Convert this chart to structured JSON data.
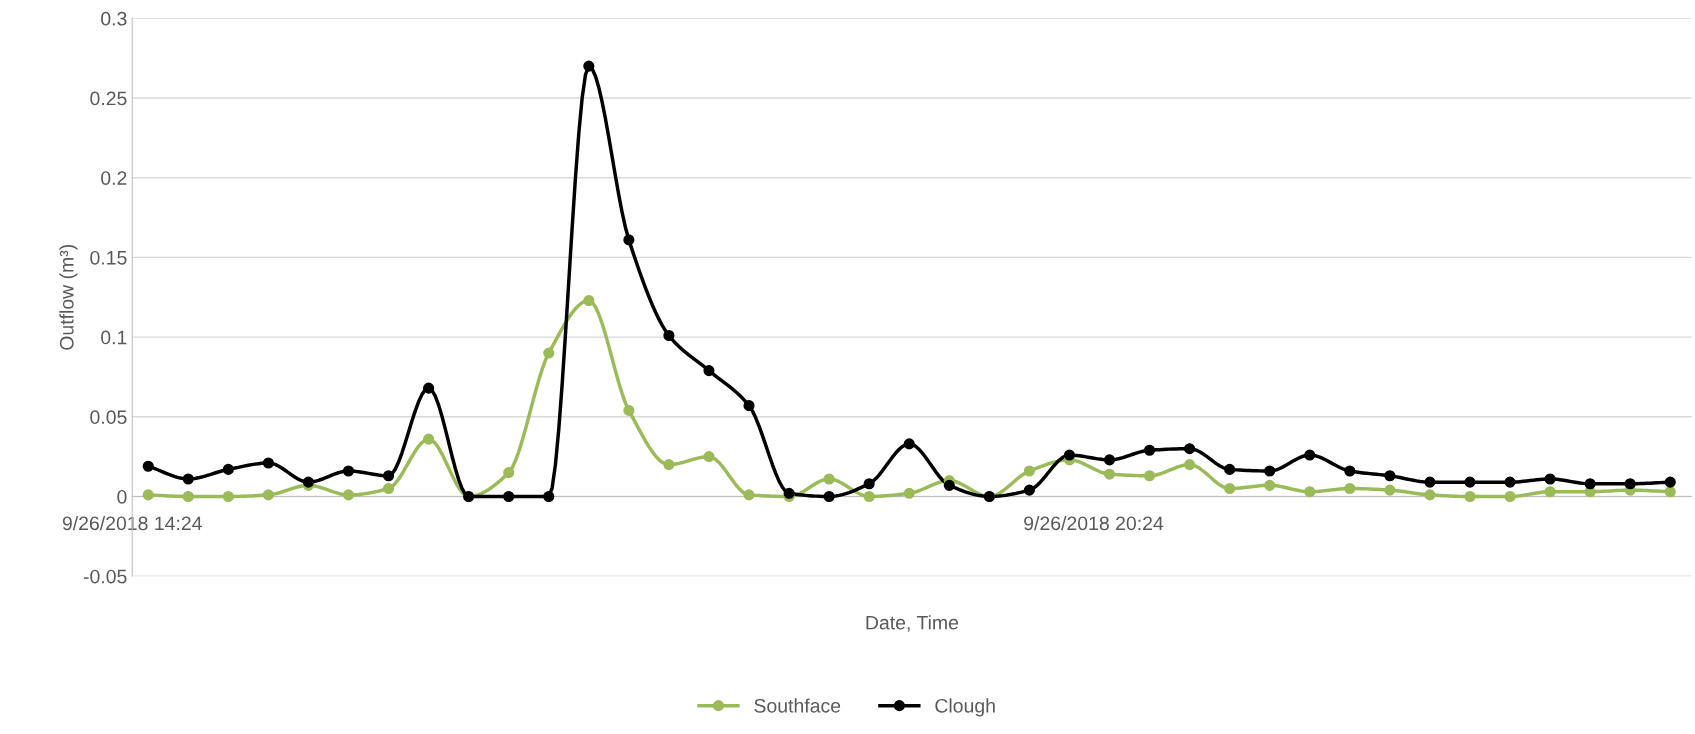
{
  "chart_data": {
    "type": "line",
    "xlabel": "Date, Time",
    "ylabel": "Outflow (m³)",
    "x": [
      "2018-09-26T14:30",
      "2018-09-26T14:45",
      "2018-09-26T15:00",
      "2018-09-26T15:15",
      "2018-09-26T15:30",
      "2018-09-26T15:45",
      "2018-09-26T16:00",
      "2018-09-26T16:15",
      "2018-09-26T16:30",
      "2018-09-26T16:45",
      "2018-09-26T17:00",
      "2018-09-26T17:15",
      "2018-09-26T17:30",
      "2018-09-26T17:45",
      "2018-09-26T18:00",
      "2018-09-26T18:15",
      "2018-09-26T18:30",
      "2018-09-26T18:45",
      "2018-09-26T19:00",
      "2018-09-26T19:15",
      "2018-09-26T19:30",
      "2018-09-26T19:45",
      "2018-09-26T20:00",
      "2018-09-26T20:15",
      "2018-09-26T20:30",
      "2018-09-26T20:45",
      "2018-09-26T21:00",
      "2018-09-26T21:15",
      "2018-09-26T21:30",
      "2018-09-26T21:45",
      "2018-09-26T22:00",
      "2018-09-26T22:15",
      "2018-09-26T22:30",
      "2018-09-26T22:45",
      "2018-09-26T23:00",
      "2018-09-26T23:15",
      "2018-09-26T23:30",
      "2018-09-26T23:45",
      "2018-09-27T00:00"
    ],
    "series": [
      {
        "name": "Southface",
        "color": "#9bbb59",
        "values": [
          0.001,
          0,
          0,
          0.001,
          0.007,
          0.001,
          0.005,
          0.036,
          0,
          0.015,
          0.09,
          0.123,
          0.054,
          0.02,
          0.025,
          0.001,
          0,
          0.011,
          0,
          0.002,
          0.01,
          0,
          0.016,
          0.023,
          0.014,
          0.013,
          0.02,
          0.005,
          0.007,
          0.003,
          0.005,
          0.004,
          0.001,
          0,
          0,
          0.003,
          0.003,
          0.004,
          0.003
        ]
      },
      {
        "name": "Clough",
        "color": "#000000",
        "values": [
          0.019,
          0.011,
          0.017,
          0.021,
          0.009,
          0.016,
          0.013,
          0.068,
          0,
          0,
          0,
          0.27,
          0.161,
          0.101,
          0.079,
          0.057,
          0.002,
          0,
          0.008,
          0.033,
          0.007,
          0,
          0.004,
          0.026,
          0.023,
          0.029,
          0.03,
          0.017,
          0.016,
          0.026,
          0.016,
          0.013,
          0.009,
          0.009,
          0.009,
          0.011,
          0.008,
          0.008,
          0.009
        ]
      }
    ],
    "xlim": [
      "2018-09-26T14:24",
      "2018-09-27T00:08"
    ],
    "xticks": [
      {
        "value": "2018-09-26T14:24",
        "label": "9/26/2018 14:24"
      },
      {
        "value": "2018-09-26T20:24",
        "label": "9/26/2018 20:24"
      }
    ],
    "ylim": [
      -0.05,
      0.3
    ],
    "yticks": [
      -0.05,
      0,
      0.05,
      0.1,
      0.15,
      0.2,
      0.25,
      0.3
    ],
    "grid": "y",
    "legend": "bottom",
    "marker": "circle",
    "line_style": "solid"
  }
}
